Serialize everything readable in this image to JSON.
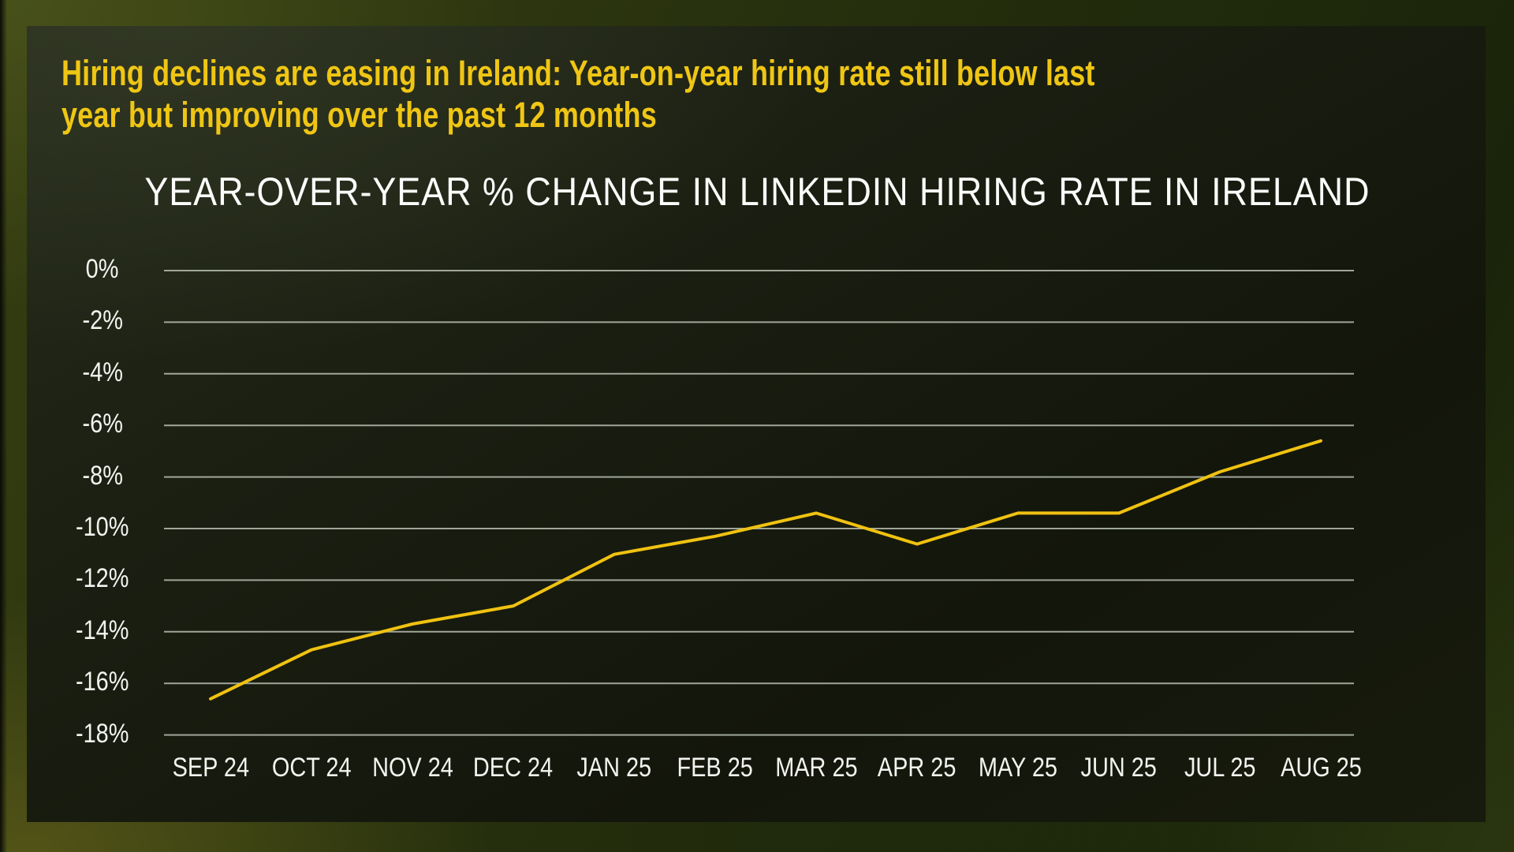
{
  "headline": {
    "line1": "Hiring declines are easing in Ireland: Year-on-year hiring rate still below last",
    "line2": "year but improving over the past 12 months",
    "color": "#EFC614"
  },
  "chart_data": {
    "type": "line",
    "title": "YEAR-OVER-YEAR % CHANGE IN LINKEDIN HIRING RATE IN IRELAND",
    "categories": [
      "SEP 24",
      "OCT 24",
      "NOV 24",
      "DEC 24",
      "JAN 25",
      "FEB 25",
      "MAR 25",
      "APR 25",
      "MAY 25",
      "JUN 25",
      "JUL 25",
      "AUG 25"
    ],
    "series": [
      {
        "name": "Year-over-year % change in LinkedIn hiring rate in Ireland",
        "values": [
          -16.6,
          -14.7,
          -13.7,
          -13.0,
          -11.0,
          -10.3,
          -9.4,
          -10.6,
          -9.4,
          -9.4,
          -7.8,
          -6.6
        ]
      }
    ],
    "yticks": [
      0,
      -2,
      -4,
      -6,
      -8,
      -10,
      -12,
      -14,
      -16,
      -18
    ],
    "ytick_labels": [
      "0%",
      "-2%",
      "-4%",
      "-6%",
      "-8%",
      "-10%",
      "-12%",
      "-14%",
      "-16%",
      "-18%"
    ],
    "ylim": [
      -18.8,
      0.4
    ],
    "xlabel": "",
    "ylabel": "",
    "grid": true,
    "legend_position": "none",
    "colors": {
      "line": "#F0C211",
      "gridline": "#B9BFB2",
      "axis_text": "#F3F3EF",
      "title_text": "#FCFCFA",
      "headline_text": "#EFC614",
      "panel_background": "#15180c",
      "outer_background": "#2a330e"
    }
  }
}
